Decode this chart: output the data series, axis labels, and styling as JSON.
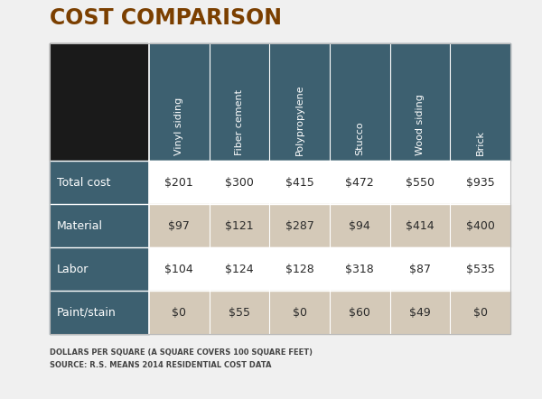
{
  "title": "COST COMPARISON",
  "title_color": "#7B3F00",
  "columns": [
    "Vinyl siding",
    "Fiber cement",
    "Polypropylene",
    "Stucco",
    "Wood siding",
    "Brick"
  ],
  "rows": [
    "Total cost",
    "Material",
    "Labor",
    "Paint/stain"
  ],
  "values": [
    [
      "$201",
      "$300",
      "$415",
      "$472",
      "$550",
      "$935"
    ],
    [
      "$97",
      "$121",
      "$287",
      "$94",
      "$414",
      "$400"
    ],
    [
      "$104",
      "$124",
      "$128",
      "$318",
      "$87",
      "$535"
    ],
    [
      "$0",
      "$55",
      "$0",
      "$60",
      "$49",
      "$0"
    ]
  ],
  "header_bg": "#3d6070",
  "header_text_color": "#ffffff",
  "row_label_bg": "#3d6070",
  "row_label_text_color": "#ffffff",
  "black_cell_color": "#1a1a1a",
  "row_bg_odd": "#ffffff",
  "row_bg_even": "#d4c9b8",
  "cell_text_color": "#2a2a2a",
  "footer_line1": "DOLLARS PER SQUARE (A SQUARE COVERS 100 SQUARE FEET)",
  "footer_line2": "SOURCE: R.S. MEANS 2014 RESIDENTIAL COST DATA",
  "footer_color": "#444444",
  "background_color": "#f0f0f0"
}
